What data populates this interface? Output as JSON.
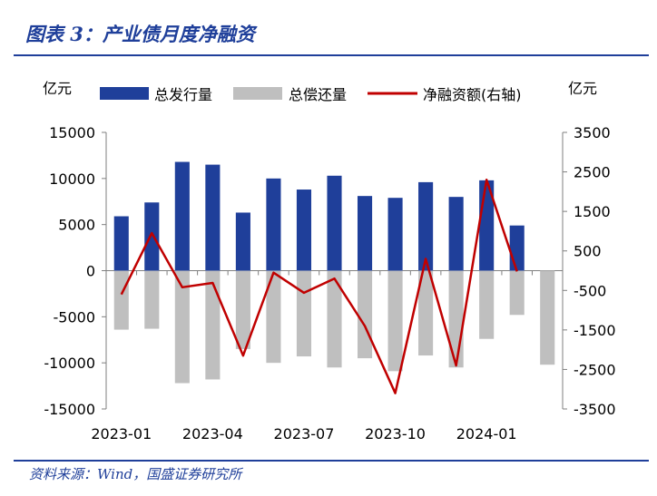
{
  "header": {
    "title": "图表 3：产业债月度净融资"
  },
  "footer": {
    "source": "资料来源：Wind，国盛证券研究所"
  },
  "colors": {
    "issue": "#1f3f9a",
    "repay": "#bfbfbf",
    "net": "#c00000",
    "axis": "#7f7f7f"
  },
  "chart_data": {
    "type": "bar",
    "y_unit_left": "亿元",
    "y_unit_right": "亿元",
    "left_ticks": [
      "15000",
      "10000",
      "5000",
      "0",
      "-5000",
      "-10000",
      "-15000"
    ],
    "right_ticks": [
      "3500",
      "2500",
      "1500",
      "500",
      "-500",
      "-1500",
      "-2500",
      "-3500"
    ],
    "x_tick_labels": [
      "2023-01",
      "2023-04",
      "2023-07",
      "2023-10",
      "2024-01"
    ],
    "ylim_left": [
      -15000,
      15000
    ],
    "ylim_right": [
      -3500,
      3500
    ],
    "categories": [
      "2023-01",
      "2023-02",
      "2023-03",
      "2023-04",
      "2023-05",
      "2023-06",
      "2023-07",
      "2023-08",
      "2023-09",
      "2023-10",
      "2023-11",
      "2023-12",
      "2024-01",
      "2024-02",
      "2024-03"
    ],
    "series": [
      {
        "name": "总发行量",
        "kind": "bar",
        "axis": "left",
        "values": [
          5900,
          7400,
          11800,
          11500,
          6300,
          10000,
          8800,
          10300,
          8100,
          7900,
          9600,
          8000,
          9800,
          4900,
          null
        ]
      },
      {
        "name": "总偿还量",
        "kind": "bar",
        "axis": "left",
        "values": [
          -6400,
          -6300,
          -12200,
          -11800,
          -8500,
          -10000,
          -9300,
          -10500,
          -9500,
          -10900,
          -9200,
          -10500,
          -7400,
          -4800,
          -10200
        ]
      },
      {
        "name": "净融资额(右轴)",
        "kind": "line",
        "axis": "right",
        "values": [
          -600,
          950,
          -420,
          -310,
          -2150,
          -50,
          -560,
          -200,
          -1400,
          -3100,
          300,
          -2400,
          2300,
          -20,
          null
        ]
      }
    ]
  }
}
